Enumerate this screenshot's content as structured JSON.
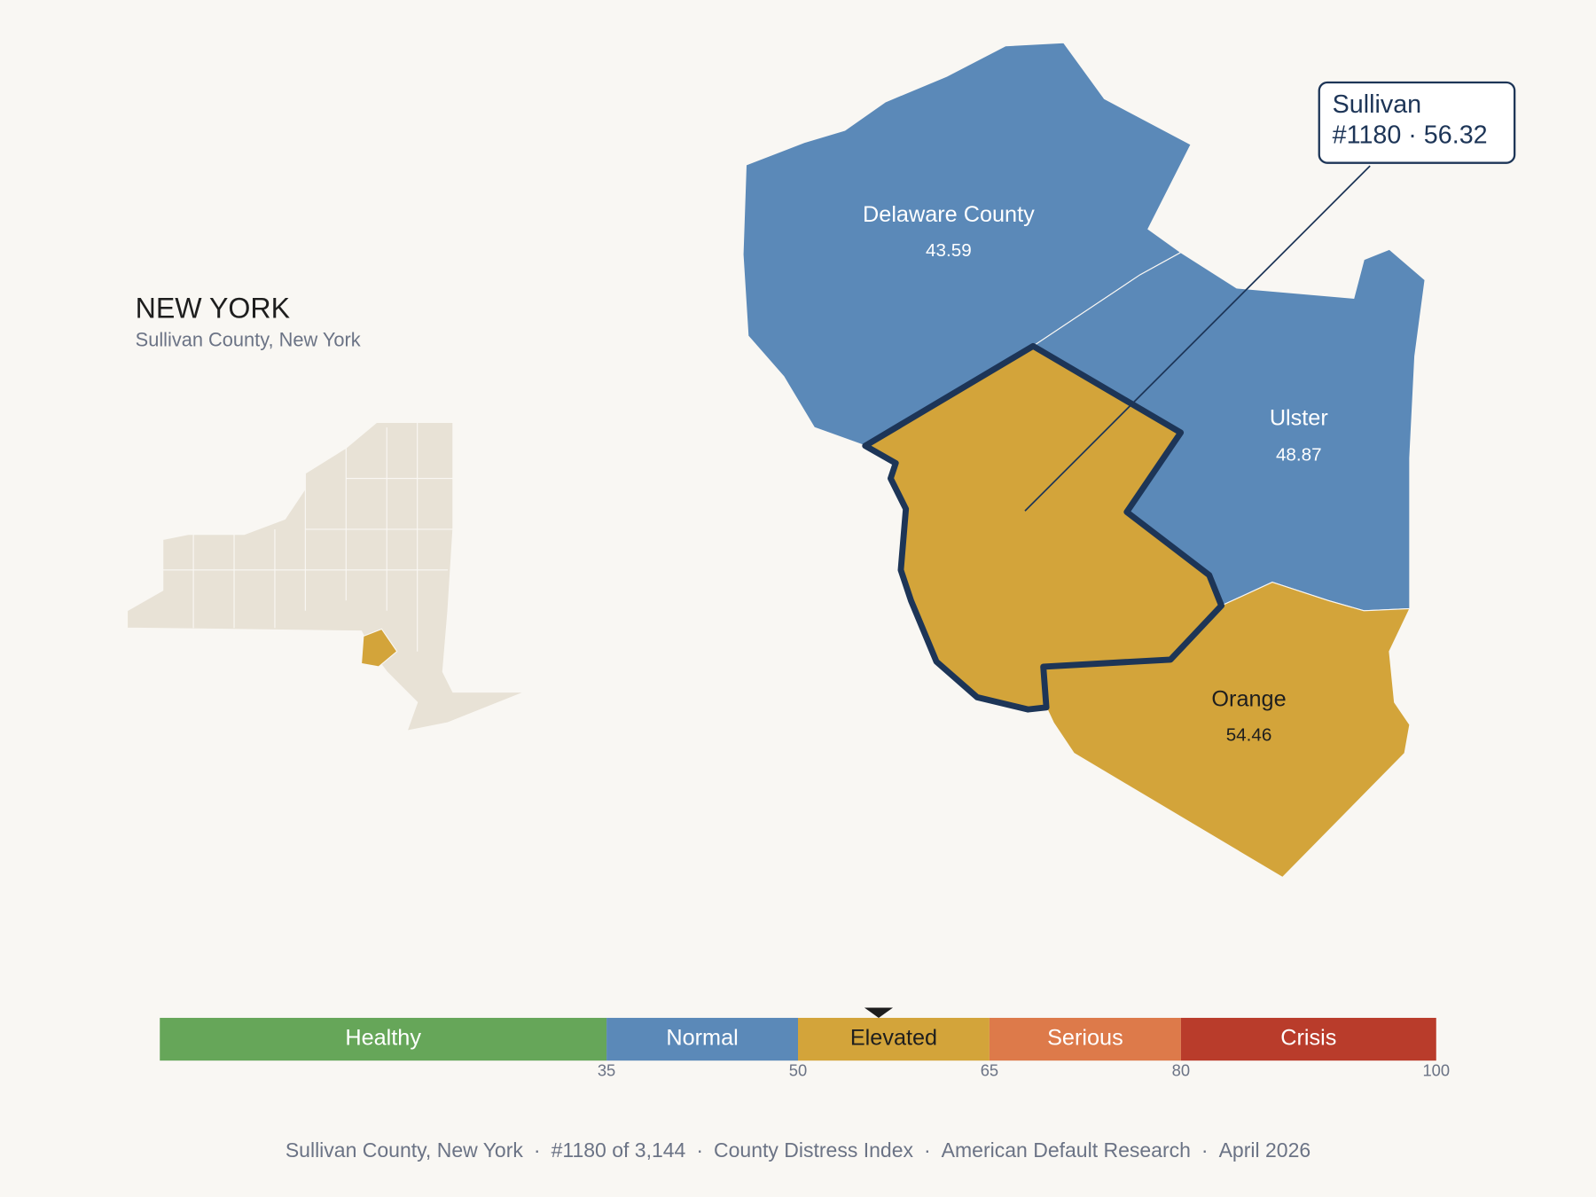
{
  "header": {
    "title": "NEW YORK",
    "subtitle": "Sullivan County, New York"
  },
  "counties": [
    {
      "name": "Delaware County",
      "value": 43.59
    },
    {
      "name": "Ulster",
      "value": 48.87
    },
    {
      "name": "Orange",
      "value": 54.46
    }
  ],
  "focus": {
    "name": "Sullivan",
    "label": "#1180 · 56.32",
    "value": 56.32
  },
  "scale": {
    "xlim": [
      0,
      100
    ],
    "xticks": [
      35,
      50,
      65,
      80,
      100
    ],
    "bins": [
      {
        "label": "Healthy",
        "color": "#66a659",
        "text_color": "#ffffff"
      },
      {
        "label": "Normal",
        "color": "#5b89b8",
        "text_color": "#ffffff"
      },
      {
        "label": "Elevated",
        "color": "#d3a43a",
        "text_color": "#1e1e1e"
      },
      {
        "label": "Serious",
        "color": "#dd7a4a",
        "text_color": "#ffffff"
      },
      {
        "label": "Crisis",
        "color": "#b93c2b",
        "text_color": "#ffffff"
      }
    ]
  },
  "footer": {
    "separator": "·",
    "items": [
      "Sullivan County, New York",
      "#1180 of 3,144",
      "County Distress Index",
      "American Default Research",
      "April 2026"
    ]
  }
}
